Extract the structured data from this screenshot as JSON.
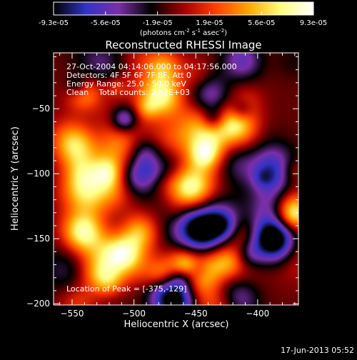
{
  "chart_data": {
    "type": "heatmap",
    "title": "Reconstructed RHESSI Image",
    "xlabel": "Heliocentric X (arcsec)",
    "ylabel": "Heliocentric Y (arcsec)",
    "xlim": [
      -565,
      -367
    ],
    "ylim": [
      -201,
      -7
    ],
    "x_ticks": [
      -550,
      -500,
      -450,
      -400
    ],
    "y_ticks": [
      -50,
      -100,
      -150,
      -200
    ],
    "colorbar": {
      "ticks": [
        "-9.3e-05",
        "-5.6e-05",
        "-1.9e-05",
        "1.9e-05",
        "5.6e-05",
        "9.3e-05"
      ],
      "range": [
        -9.3e-05,
        9.3e-05
      ],
      "label_main": "(photons cm",
      "label_sup1": "-2",
      "label_mid": " s",
      "label_sup2": "-1",
      "label_end": " asec",
      "label_sup3": "-2",
      "label_close": ")"
    },
    "annotations": {
      "time_range": "27-Oct-2004 04:14:06.000 to 04:17:56.000",
      "detectors": "Detectors: 4F 5F 6F 7F 8F, Att 0",
      "energy": "Energy Range: 25.0 - 50.0 keV",
      "clean": "Clean    Total counts: 2.62E+03",
      "peak": "Location of Peak = [-375,-129]"
    },
    "peak": [
      -375,
      -129
    ],
    "colormap": [
      "#000000",
      "#3232c8",
      "#7a2fa8",
      "#000000",
      "#a00000",
      "#ff4000",
      "#ffa500",
      "#ffff80",
      "#ffffff"
    ]
  },
  "footer": {
    "date": "17-Jun-2013 05:52"
  }
}
